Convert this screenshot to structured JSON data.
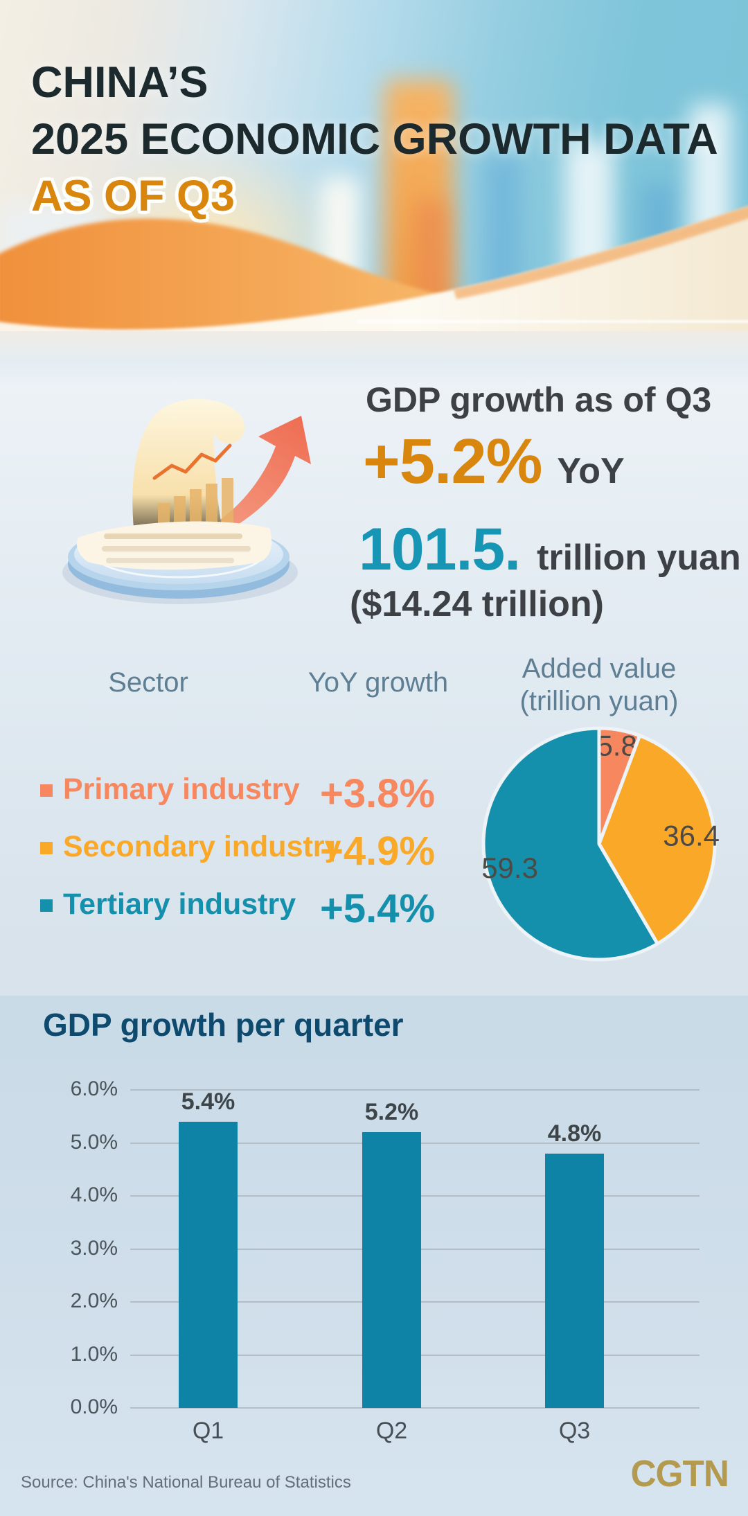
{
  "page": {
    "title_line1": "CHINA’S",
    "title_line2": "2025 ECONOMIC GROWTH DATA",
    "title_line3": "AS OF Q3"
  },
  "gdp_summary": {
    "heading": "GDP growth as of Q3",
    "yoy_value": "+5.2%",
    "yoy_label": "YoY",
    "total_value": "101.5.",
    "total_unit": "trillion yuan",
    "usd_value": "($14.24 trillion)"
  },
  "sector_table": {
    "col_sector": "Sector",
    "col_yoy": "YoY growth",
    "col_added_line1": "Added value",
    "col_added_line2": "(trillion yuan)",
    "rows": [
      {
        "name": "Primary industry",
        "yoy": "+3.8%",
        "added_value": 5.8,
        "color": "#f6875f"
      },
      {
        "name": "Secondary industry",
        "yoy": "+4.9%",
        "added_value": 36.4,
        "color": "#f9a827"
      },
      {
        "name": "Tertiary industry",
        "yoy": "+5.4%",
        "added_value": 59.3,
        "color": "#1590ac"
      }
    ]
  },
  "chart_data": [
    {
      "type": "pie",
      "title": "Added value (trillion yuan)",
      "labels": [
        "Primary industry",
        "Secondary industry",
        "Tertiary industry"
      ],
      "values": [
        5.8,
        36.4,
        59.3
      ],
      "data_labels": [
        "5.8",
        "36.4",
        "59.3"
      ],
      "colors": [
        "#f6875f",
        "#f9a827",
        "#1590ac"
      ],
      "start_angle_deg": -90,
      "direction": "clockwise",
      "legend_position": "none"
    },
    {
      "type": "bar",
      "title": "GDP growth per quarter",
      "categories": [
        "Q1",
        "Q2",
        "Q3"
      ],
      "values": [
        5.4,
        5.2,
        4.8
      ],
      "data_labels": [
        "5.4%",
        "5.2%",
        "4.8%"
      ],
      "yticks": [
        "6.0%",
        "5.0%",
        "4.0%",
        "3.0%",
        "2.0%",
        "1.0%",
        "0.0%"
      ],
      "ylim": [
        0,
        6
      ],
      "grid": true,
      "bar_color": "#0f83a5",
      "xlabel": "",
      "ylabel": ""
    }
  ],
  "footer": {
    "source": "Source: China's National Bureau of Statistics",
    "logo": "CGTN"
  },
  "colors": {
    "title_dark": "#1c2a2e",
    "accent_orange": "#d8860d",
    "teal_value": "#1795b4",
    "table_header": "#5e7e93",
    "chart_title_navy": "#0e4a6e",
    "cgtn_gold": "#b39a4f"
  }
}
